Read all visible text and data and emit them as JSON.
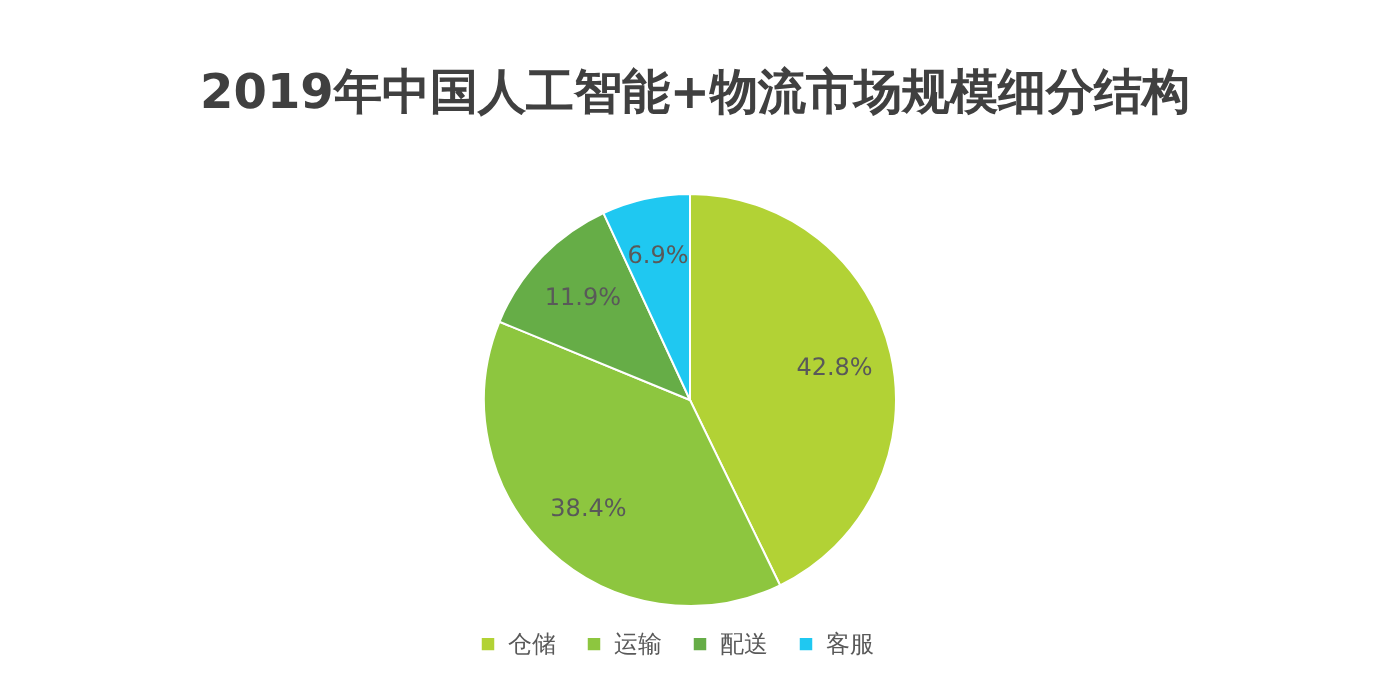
{
  "chart_data": {
    "type": "pie",
    "title": "2019年中国人工智能+物流市场规模细分结构",
    "categories": [
      "仓储",
      "运输",
      "配送",
      "客服"
    ],
    "values": [
      42.8,
      38.4,
      11.9,
      6.9
    ],
    "colors": [
      "#b2d235",
      "#8dc63f",
      "#66ad47",
      "#1fc8f1"
    ],
    "value_labels": [
      "42.8%",
      "38.4%",
      "11.9%",
      "6.9%"
    ],
    "legend": "bottom"
  }
}
